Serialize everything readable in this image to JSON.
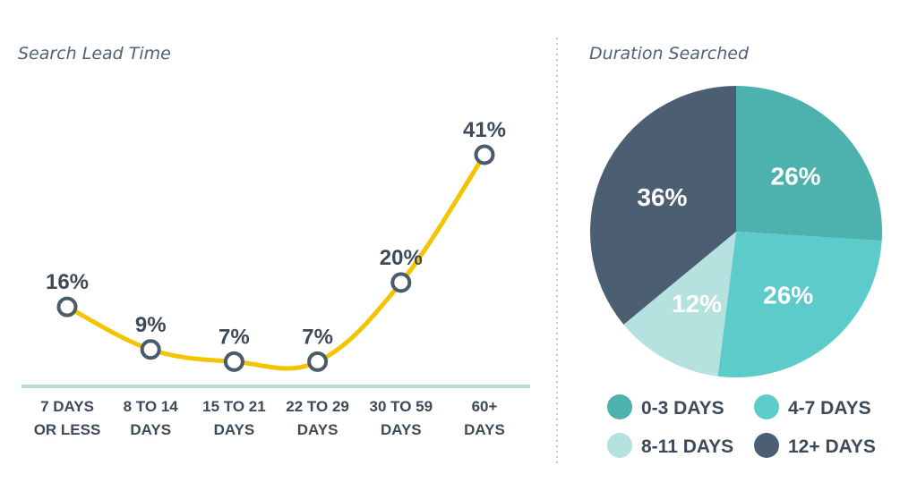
{
  "chart_data": [
    {
      "type": "line",
      "title": "Search Lead Time",
      "categories": [
        [
          "7 DAYS",
          "OR LESS"
        ],
        [
          "8 TO 14",
          "DAYS"
        ],
        [
          "15 TO 21",
          "DAYS"
        ],
        [
          "22 TO 29",
          "DAYS"
        ],
        [
          "30 TO 59",
          "DAYS"
        ],
        [
          "60+",
          "DAYS"
        ]
      ],
      "series": [
        {
          "values": [
            16,
            9,
            7,
            7,
            20,
            41
          ]
        }
      ],
      "labels": [
        "16%",
        "9%",
        "7%",
        "7%",
        "20%",
        "41%"
      ],
      "ylim": [
        0,
        45
      ],
      "grid": false,
      "colors": {
        "line": "#f5c400",
        "marker_stroke": "#4a5b6c",
        "baseline": "#b2e0e0"
      }
    },
    {
      "type": "pie",
      "title": "Duration Searched",
      "slices": [
        {
          "label": "0-3 DAYS",
          "value": 26,
          "value_label": "26%",
          "color": "#4db1ae"
        },
        {
          "label": "4-7 DAYS",
          "value": 26,
          "value_label": "26%",
          "color": "#5ecbcb"
        },
        {
          "label": "8-11 DAYS",
          "value": 12,
          "value_label": "12%",
          "color": "#b5e1df"
        },
        {
          "label": "12+ DAYS",
          "value": 36,
          "value_label": "36%",
          "color": "#4c5f72"
        }
      ],
      "legend_position": "bottom"
    }
  ]
}
